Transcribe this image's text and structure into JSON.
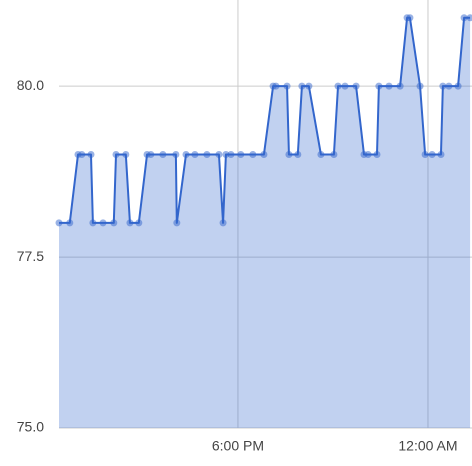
{
  "chart_data": {
    "type": "area",
    "x": [
      12.35,
      12.69,
      12.95,
      13.07,
      13.36,
      13.42,
      13.74,
      14.08,
      14.15,
      14.46,
      14.59,
      14.87,
      15.13,
      15.25,
      15.63,
      16.04,
      16.07,
      16.36,
      16.64,
      17.02,
      17.4,
      17.53,
      17.62,
      17.78,
      18.09,
      18.47,
      18.82,
      19.11,
      19.2,
      19.55,
      19.61,
      19.89,
      20.02,
      20.24,
      20.62,
      21.03,
      21.16,
      21.38,
      21.73,
      21.98,
      22.11,
      22.39,
      22.45,
      22.77,
      23.12,
      23.34,
      23.43,
      23.75,
      23.91,
      24.13,
      24.41,
      24.47,
      24.66,
      24.95,
      25.14,
      25.33
    ],
    "values": [
      78,
      78,
      79,
      79,
      79,
      78,
      78,
      78,
      79,
      79,
      78,
      78,
      79,
      79,
      79,
      79,
      78,
      79,
      79,
      79,
      79,
      78,
      79,
      79,
      79,
      79,
      79,
      80,
      80,
      80,
      79,
      79,
      80,
      80,
      79,
      79,
      80,
      80,
      80,
      79,
      79,
      79,
      80,
      80,
      80,
      81,
      81,
      80,
      79,
      79,
      79,
      80,
      80,
      80,
      81,
      81
    ],
    "color": "#3366cc",
    "xlim": [
      12.35,
      25.39
    ],
    "xticks": [
      {
        "value": 18,
        "label": "6:00 PM"
      },
      {
        "value": 24,
        "label": "12:00 AM"
      }
    ],
    "ylim": [
      75,
      81.26
    ],
    "yticks": [
      {
        "value": 75,
        "label": "75.0"
      },
      77.5,
      {
        "value": 80,
        "label": "80.0"
      }
    ],
    "grid": true
  }
}
